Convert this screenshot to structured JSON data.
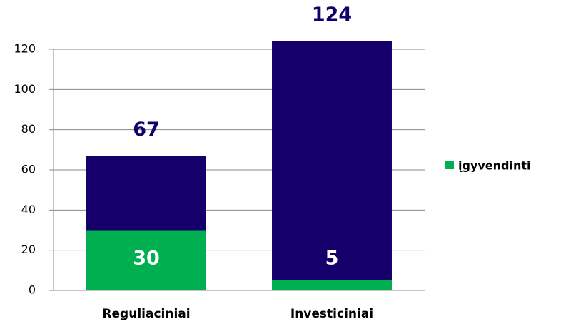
{
  "chart_data": {
    "type": "bar",
    "categories": [
      "Reguliaciniai",
      "Investiciniai"
    ],
    "series": [
      {
        "color": "#15006b",
        "values": [
          67,
          124
        ]
      },
      {
        "name": "įgyvendinti",
        "color": "#00b050",
        "values": [
          30,
          5
        ]
      }
    ],
    "ylim": [
      0,
      120
    ],
    "yticks": [
      0,
      20,
      40,
      60,
      80,
      100,
      120
    ],
    "grid": true,
    "legend": "right"
  }
}
